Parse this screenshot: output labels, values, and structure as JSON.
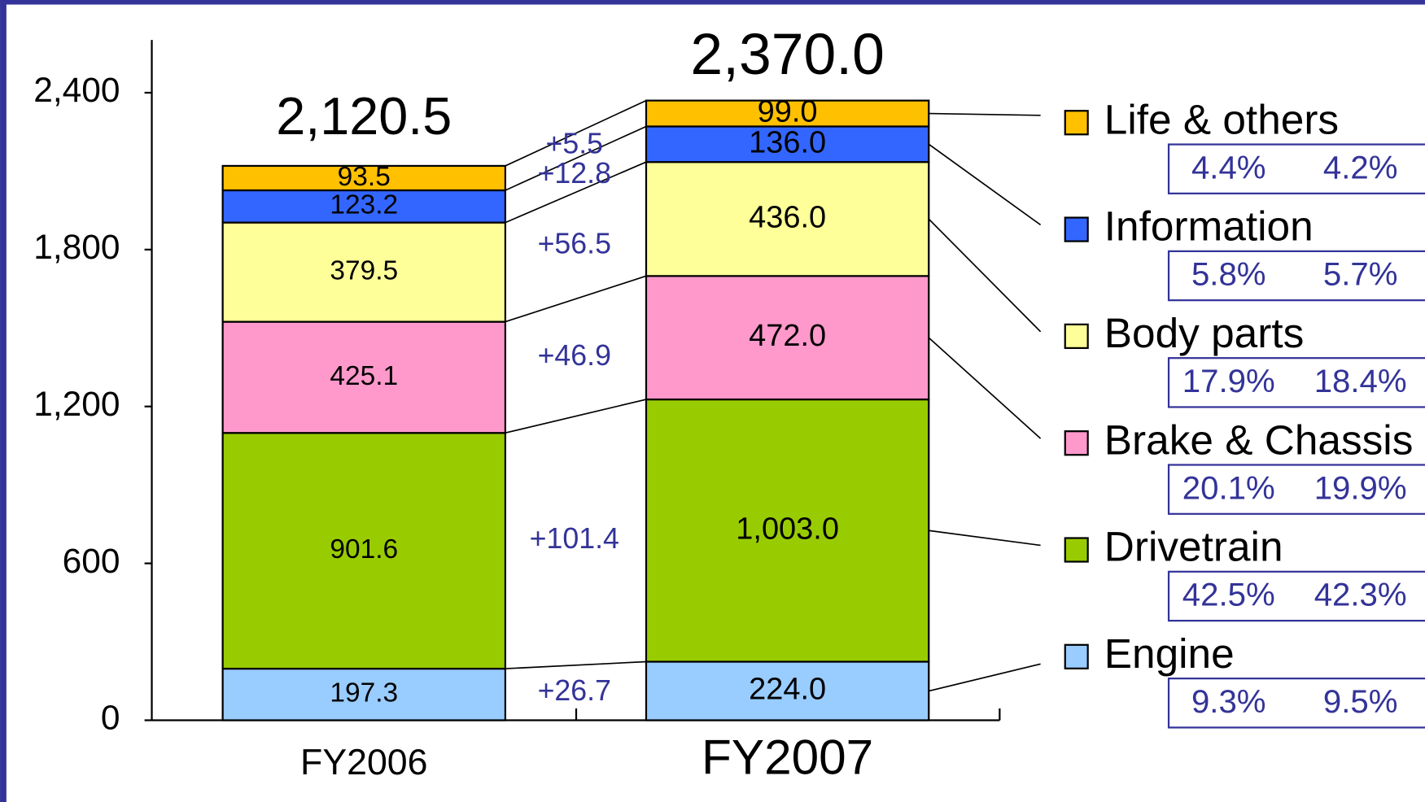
{
  "chart_data": {
    "type": "stacked_bar",
    "categories": [
      "FY2006",
      "FY2007"
    ],
    "ylim": [
      0,
      2600
    ],
    "yticks": [
      0,
      600,
      {
        "value": 1200,
        "label": "1,200"
      },
      {
        "value": 1800,
        "label": "1,800"
      },
      {
        "value": 2400,
        "label": "2,400"
      }
    ],
    "totals": {
      "values": [
        2120.5,
        2370.0
      ],
      "value_labels": [
        "2,120.5",
        "2,370.0"
      ]
    },
    "series": [
      {
        "name": "Engine",
        "color": "#99ccff",
        "values": [
          197.3,
          224.0
        ],
        "value_labels": [
          "197.3",
          "224.0"
        ],
        "change": 26.7,
        "change_label": "+26.7",
        "shares": [
          9.3,
          9.5
        ],
        "share_labels": [
          "9.3%",
          "9.5%"
        ]
      },
      {
        "name": "Drivetrain",
        "color": "#99cc00",
        "values": [
          901.6,
          1003.0
        ],
        "value_labels": [
          "901.6",
          "1,003.0"
        ],
        "change": 101.4,
        "change_label": "+101.4",
        "shares": [
          42.5,
          42.3
        ],
        "share_labels": [
          "42.5%",
          "42.3%"
        ]
      },
      {
        "name": "Brake & Chassis",
        "color": "#ff99cc",
        "values": [
          425.1,
          472.0
        ],
        "value_labels": [
          "425.1",
          "472.0"
        ],
        "change": 46.9,
        "change_label": "+46.9",
        "shares": [
          20.1,
          19.9
        ],
        "share_labels": [
          "20.1%",
          "19.9%"
        ]
      },
      {
        "name": "Body parts",
        "color": "#ffff99",
        "values": [
          379.5,
          436.0
        ],
        "value_labels": [
          "379.5",
          "436.0"
        ],
        "change": 56.5,
        "change_label": "+56.5",
        "shares": [
          17.9,
          18.4
        ],
        "share_labels": [
          "17.9%",
          "18.4%"
        ]
      },
      {
        "name": "Information",
        "color": "#3366ff",
        "values": [
          123.2,
          136.0
        ],
        "value_labels": [
          "123.2",
          "136.0"
        ],
        "change": 12.8,
        "change_label": "+12.8",
        "shares": [
          5.8,
          5.7
        ],
        "share_labels": [
          "5.8%",
          "5.7%"
        ]
      },
      {
        "name": "Life & others",
        "color": "#ffc000",
        "values": [
          93.5,
          99.0
        ],
        "value_labels": [
          "93.5",
          "99.0"
        ],
        "change": 5.5,
        "change_label": "+5.5",
        "shares": [
          4.4,
          4.2
        ],
        "share_labels": [
          "4.4%",
          "4.2%"
        ]
      }
    ]
  }
}
